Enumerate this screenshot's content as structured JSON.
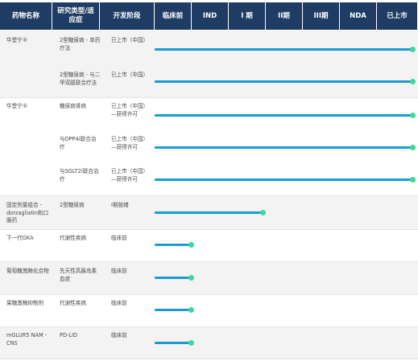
{
  "header": {
    "drug": "药物名称",
    "indication": "研究类型/适应症",
    "stage": "开发阶段",
    "phases": [
      "临床前",
      "IND",
      "I 期",
      "II期",
      "III期",
      "NDA",
      "已上市"
    ]
  },
  "rows": [
    {
      "drug": "华堂宁®",
      "indication": "2型糖尿病 - 单药疗法",
      "stage": "已上市（中国）",
      "progress": 1.0
    },
    {
      "drug": "",
      "indication": "2型糖尿病 - 与二甲双胍联合疗法",
      "stage": "已上市（中国）",
      "progress": 1.0
    },
    {
      "drug": "华堂宁®",
      "indication": "糖尿病肾病",
      "stage": "已上市（中国）—获得许可",
      "progress": 1.0
    },
    {
      "drug": "",
      "indication": "与DPP4i联合治疗",
      "stage": "已上市（中国）—获得许可",
      "progress": 1.0
    },
    {
      "drug": "",
      "indication": "与SGLT2i联合治疗",
      "stage": "已上市（中国）—获得许可",
      "progress": 1.0
    },
    {
      "drug": "固定剂量组合 - dorzagliatin和口服药",
      "indication": "2型糖尿病",
      "stage": "I期就绪",
      "progress": 0.42
    },
    {
      "drug": "下一代GKA",
      "indication": "代谢性疾病",
      "stage": "临床前",
      "progress": 0.14
    },
    {
      "drug": "葡萄糖激酶化合物",
      "indication": "先天性高胰岛素血症",
      "stage": "临床前",
      "progress": 0.14
    },
    {
      "drug": "果糖激酶抑制剂",
      "indication": "代谢性疾病",
      "stage": "临床前",
      "progress": 0.14
    },
    {
      "drug": "mGLUR5 NAM - CNS",
      "indication": "PD-LID",
      "stage": "临床前",
      "progress": 0.14
    }
  ],
  "colors": {
    "header_bg": "#1f3c64",
    "bar": "#1b9ccf",
    "dot": "#3ed89e",
    "row_alt": "#f3f3f3"
  }
}
